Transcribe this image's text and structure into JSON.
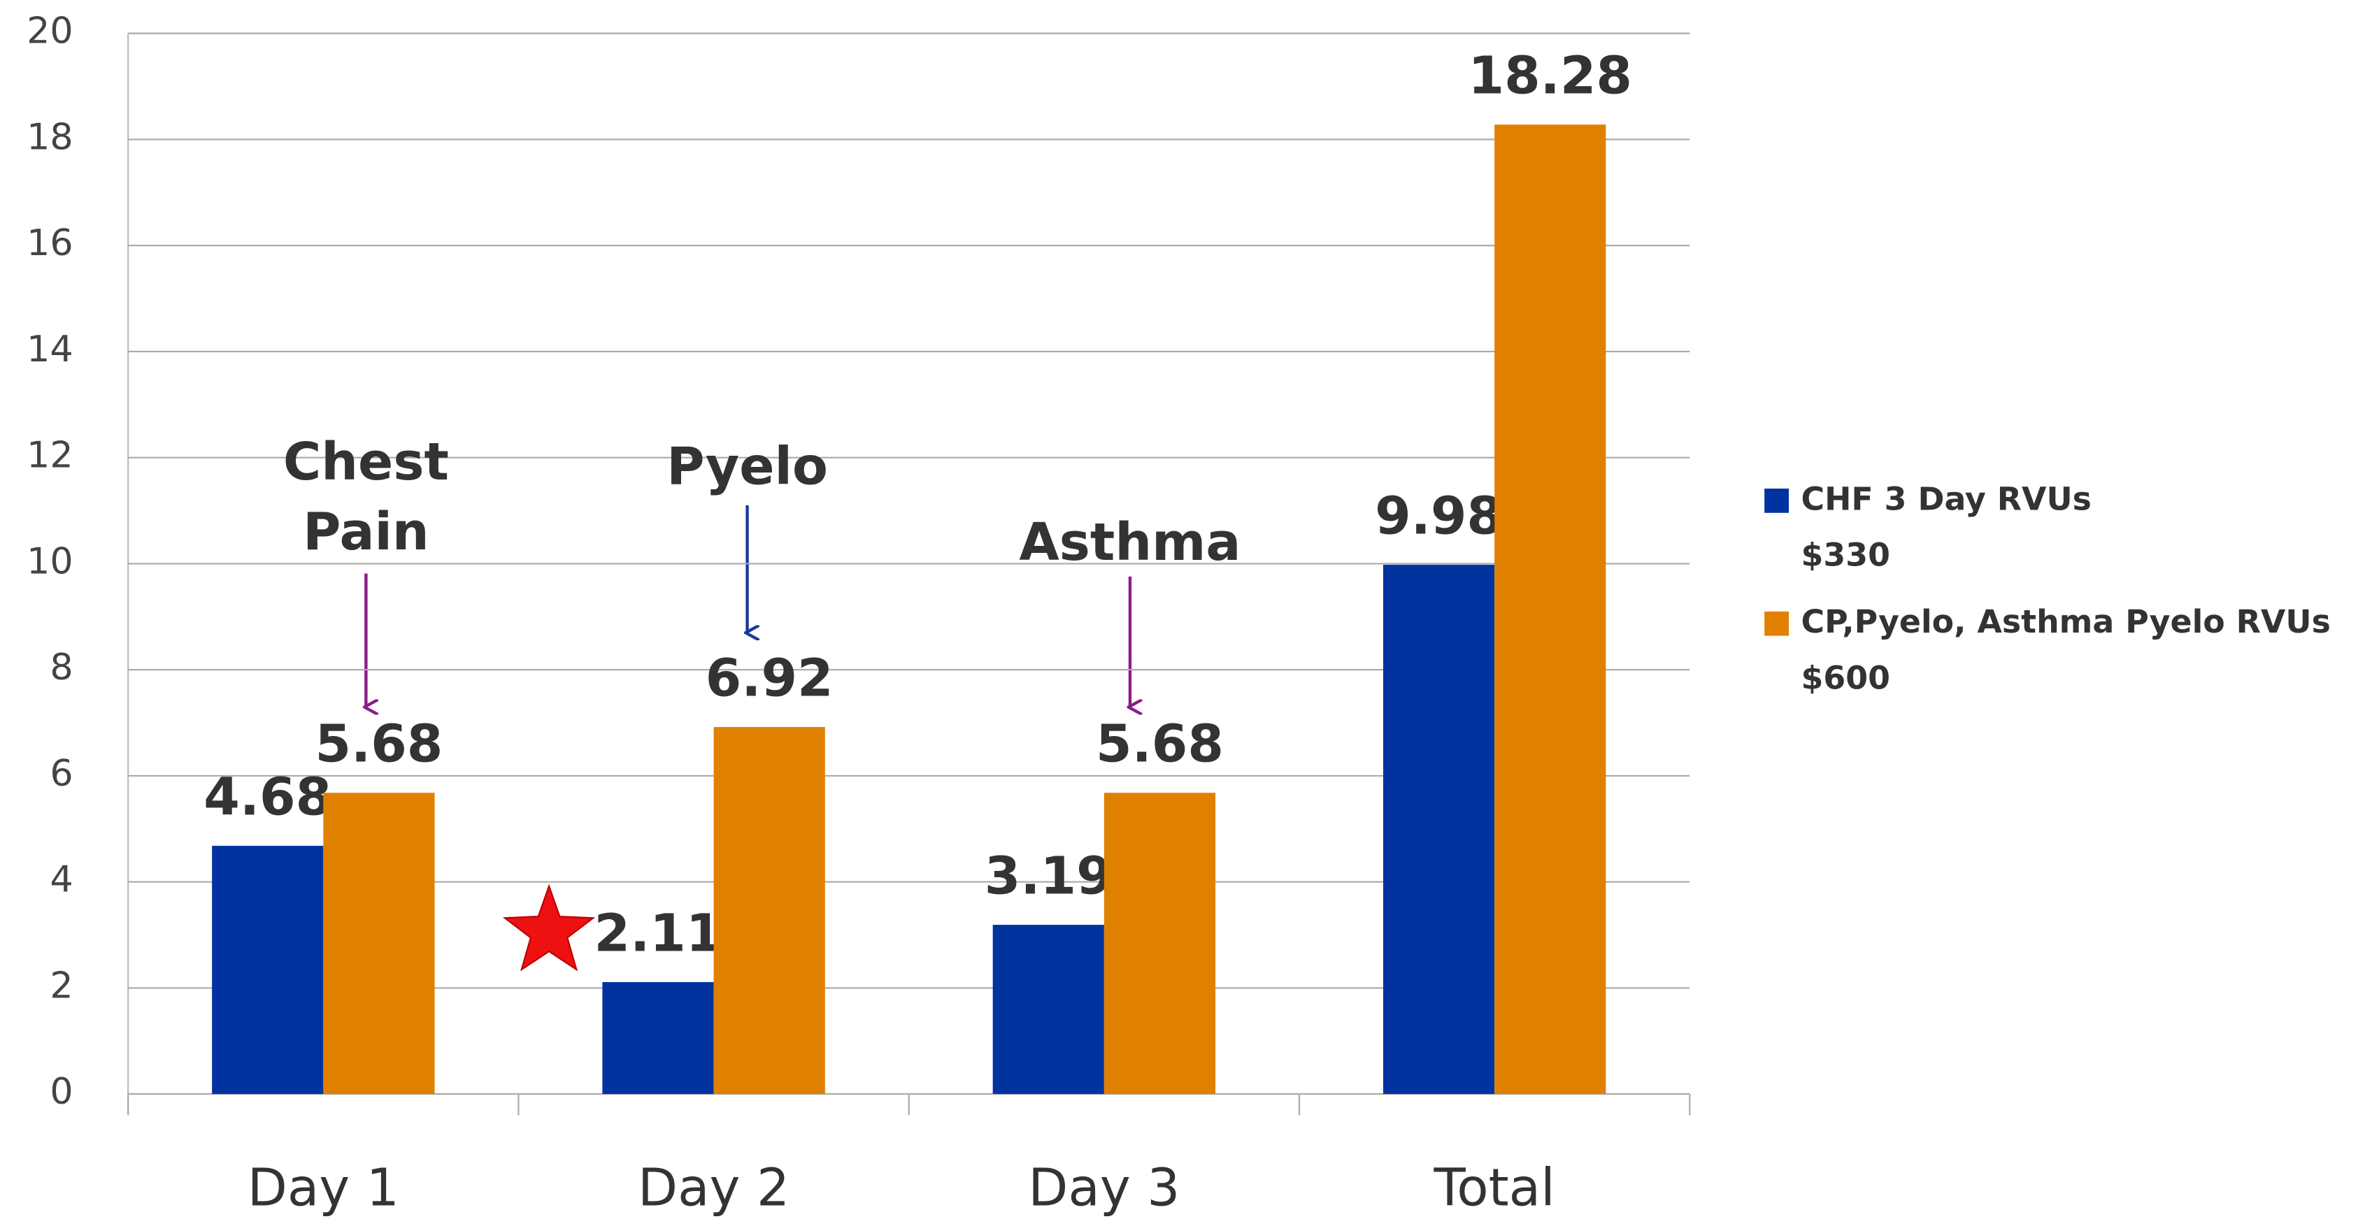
{
  "chart_data": {
    "type": "bar",
    "categories": [
      "Day 1",
      "Day 2",
      "Day 3",
      "Total"
    ],
    "series": [
      {
        "name": "CHF 3 Day RVUs\n$330",
        "color": "#0033a0",
        "values": [
          4.68,
          2.11,
          3.19,
          9.98
        ]
      },
      {
        "name": "CP,Pyelo, Asthma Pyelo RVUs\n$600",
        "color": "#e08000",
        "values": [
          5.68,
          6.92,
          5.68,
          18.28
        ]
      }
    ],
    "annotations": [
      "Chest\nPain",
      "Pyelo",
      "Asthma"
    ],
    "ylim": [
      0,
      20
    ],
    "yticks": [
      0,
      2,
      4,
      6,
      8,
      10,
      12,
      14,
      16,
      18,
      20
    ],
    "grid": true,
    "legend": "right"
  }
}
